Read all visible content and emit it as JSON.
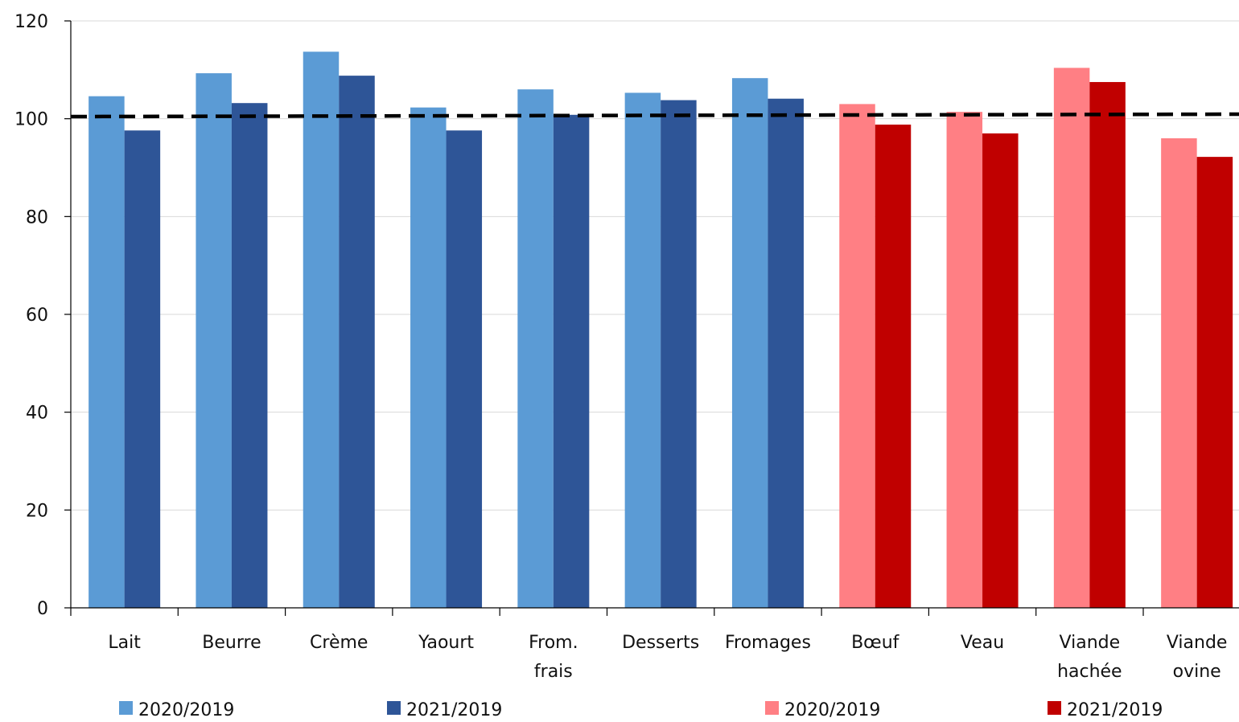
{
  "chart_data": {
    "type": "bar",
    "categories": [
      [
        "Lait"
      ],
      [
        "Beurre"
      ],
      [
        "Crème"
      ],
      [
        "Yaourt"
      ],
      [
        "From.",
        "frais"
      ],
      [
        "Desserts"
      ],
      [
        "Fromages"
      ],
      [
        "Bœuf"
      ],
      [
        "Veau"
      ],
      [
        "Viande",
        "hachée"
      ],
      [
        "Viande",
        "ovine"
      ]
    ],
    "series": [
      {
        "name": "2020/2019",
        "values": [
          104.6,
          109.3,
          113.7,
          102.3,
          106.0,
          105.3,
          108.3,
          103.0,
          101.4,
          110.4,
          96.0
        ]
      },
      {
        "name": "2021/2019",
        "values": [
          97.6,
          103.2,
          108.8,
          97.6,
          100.8,
          103.8,
          104.1,
          98.8,
          97.0,
          107.5,
          92.2
        ]
      }
    ],
    "group_colors": [
      {
        "applies_to": [
          0,
          1,
          2,
          3,
          4,
          5,
          6
        ],
        "series_colors": [
          "#5b9bd5",
          "#2e5597"
        ]
      },
      {
        "applies_to": [
          7,
          8,
          9,
          10
        ],
        "series_colors": [
          "#ff7f84",
          "#c00000"
        ]
      }
    ],
    "reference_line": {
      "value": 100.6,
      "style": "dashed",
      "color": "#000000"
    },
    "ylim": [
      0,
      120
    ],
    "yticks": [
      0,
      20,
      40,
      60,
      80,
      100,
      120
    ],
    "grid": true,
    "legend": [
      {
        "label": "2020/2019",
        "color": "#5b9bd5"
      },
      {
        "label": "2021/2019",
        "color": "#2e5597"
      },
      {
        "label": "2020/2019",
        "color": "#ff7f84"
      },
      {
        "label": "2021/2019",
        "color": "#c00000"
      }
    ],
    "legend_position": "bottom",
    "title": "",
    "xlabel": "",
    "ylabel": ""
  }
}
